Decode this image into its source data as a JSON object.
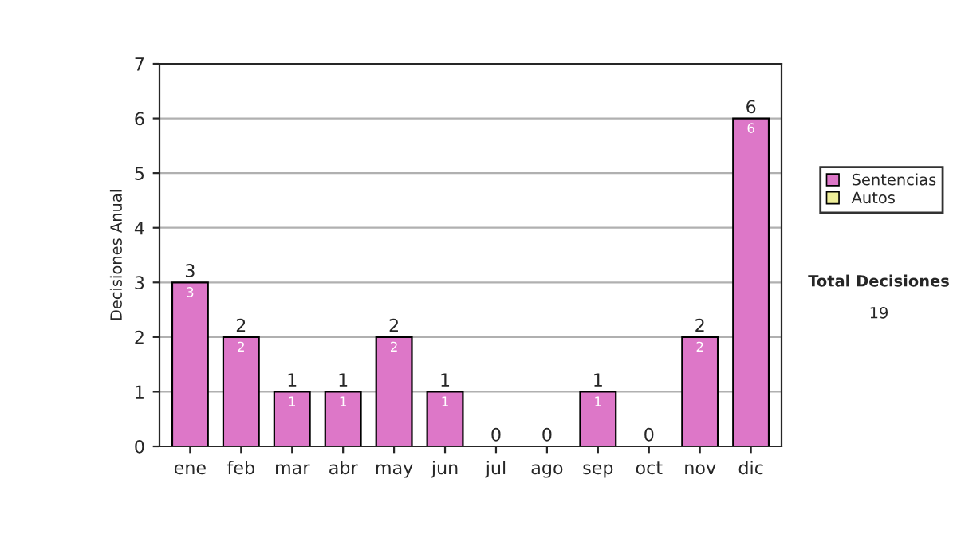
{
  "chart_data": {
    "type": "bar",
    "stacked": true,
    "categories": [
      "ene",
      "feb",
      "mar",
      "abr",
      "may",
      "jun",
      "jul",
      "ago",
      "sep",
      "oct",
      "nov",
      "dic"
    ],
    "series": [
      {
        "name": "Sentencias",
        "color": "#dd77c8",
        "values": [
          3,
          2,
          1,
          1,
          2,
          1,
          0,
          0,
          1,
          0,
          2,
          6
        ],
        "value_labels": [
          "3",
          "2",
          "1",
          "1",
          "2",
          "1",
          null,
          null,
          "1",
          null,
          "2",
          "6"
        ]
      },
      {
        "name": "Autos",
        "color": "#eeee99",
        "values": [
          0,
          0,
          0,
          0,
          0,
          0,
          0,
          0,
          0,
          0,
          0,
          0
        ]
      }
    ],
    "totals": [
      "3",
      "2",
      "1",
      "1",
      "2",
      "1",
      "0",
      "0",
      "1",
      "0",
      "2",
      "6"
    ],
    "ylabel": "Decisiones Anual",
    "ylim": [
      0,
      7
    ],
    "yticks": [
      0,
      1,
      2,
      3,
      4,
      5,
      6,
      7
    ],
    "grid": "y",
    "legend": "right",
    "annotations": [
      "Total Decisiones",
      "19"
    ]
  }
}
